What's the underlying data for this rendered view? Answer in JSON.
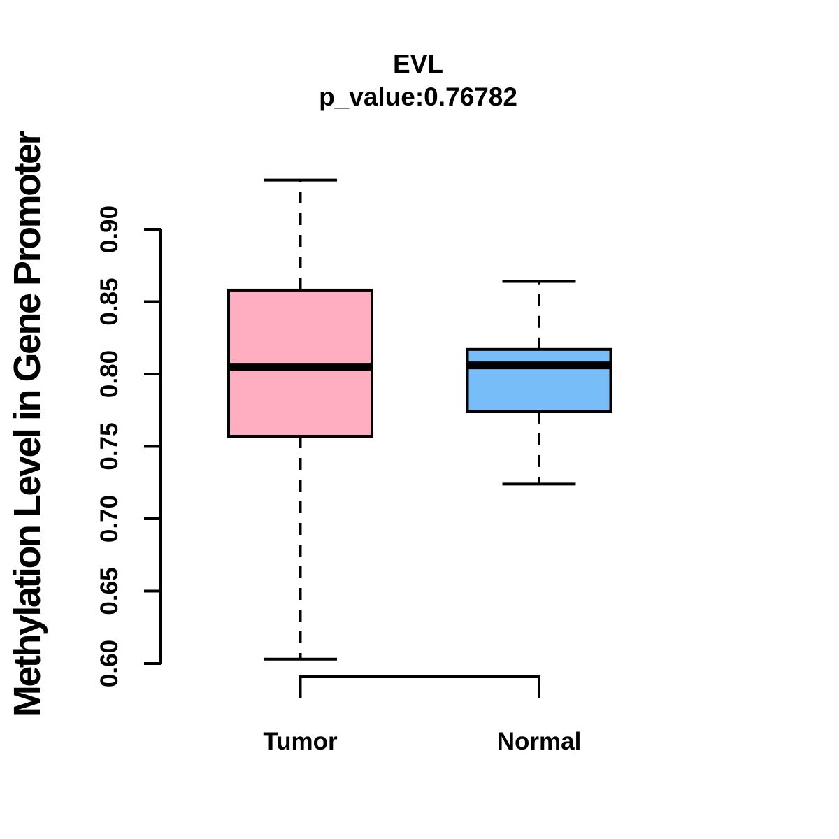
{
  "title": {
    "line1": "EVL",
    "line2": "p_value:0.76782"
  },
  "y_axis": {
    "label": "Methylation Level in Gene Promoter",
    "ticks": [
      0.6,
      0.65,
      0.7,
      0.75,
      0.8,
      0.85,
      0.9
    ],
    "tick_labels": [
      "0.60",
      "0.65",
      "0.70",
      "0.75",
      "0.80",
      "0.85",
      "0.90"
    ],
    "range": [
      0.6,
      0.9
    ]
  },
  "x_axis": {
    "categories": [
      "Tumor",
      "Normal"
    ]
  },
  "chart_data": {
    "type": "boxplot",
    "title": "EVL",
    "subtitle": "p_value:0.76782",
    "p_value": "0.76782",
    "ylabel": "Methylation Level in Gene Promoter",
    "xlabel": "",
    "categories": [
      "Tumor",
      "Normal"
    ],
    "y_ticks": [
      0.6,
      0.65,
      0.7,
      0.75,
      0.8,
      0.85,
      0.9
    ],
    "ylim": [
      0.6,
      0.9
    ],
    "grid": false,
    "legend": "none",
    "series": [
      {
        "name": "Tumor",
        "fill": "#FFAEC1",
        "whisker_low": 0.603,
        "q1": 0.757,
        "median": 0.805,
        "q3": 0.858,
        "whisker_high": 0.934,
        "outliers": []
      },
      {
        "name": "Normal",
        "fill": "#77BEF8",
        "whisker_low": 0.724,
        "q1": 0.774,
        "median": 0.806,
        "q3": 0.817,
        "whisker_high": 0.864,
        "outliers": []
      }
    ]
  },
  "colors": {
    "background": "#FFFFFF",
    "box_border": "#000000",
    "median_line": "#000000",
    "whisker": "#000000",
    "axis": "#000000",
    "text": "#000000",
    "tumor_fill": "#FFAEC1",
    "normal_fill": "#77BEF8"
  }
}
